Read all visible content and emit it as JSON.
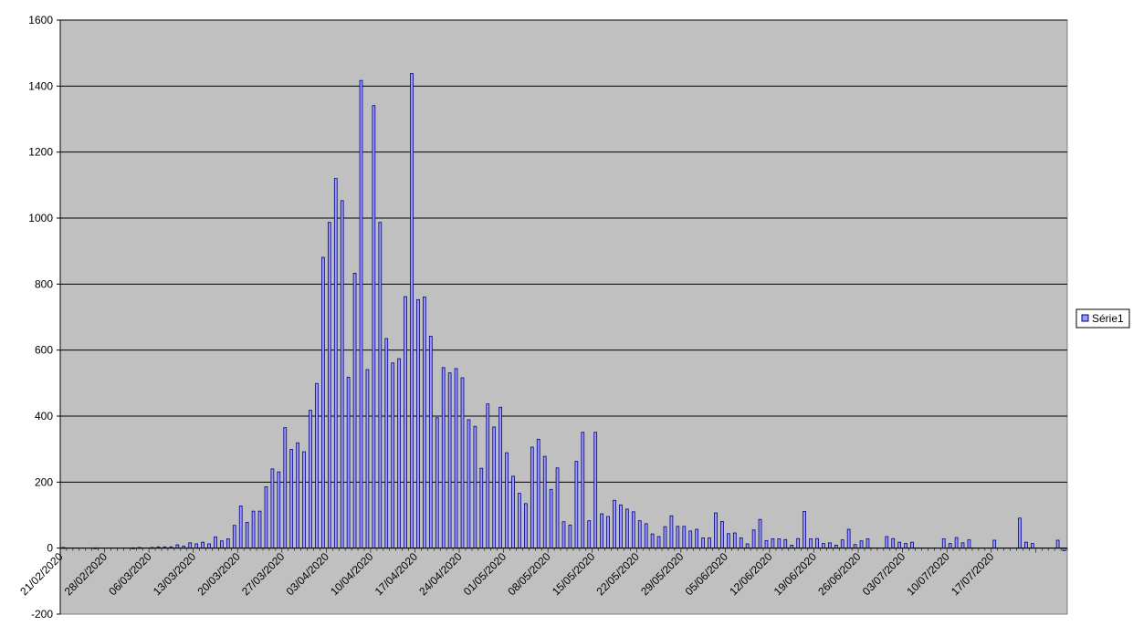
{
  "chart_data": {
    "type": "bar",
    "title": "",
    "xlabel": "",
    "ylabel": "",
    "ylim": [
      -200,
      1600
    ],
    "yticks": [
      -200,
      0,
      200,
      400,
      600,
      800,
      1000,
      1200,
      1400,
      1600
    ],
    "grid": "horizontal major gridlines",
    "legend": "right",
    "x_start_date": "21/02/2020",
    "x_tick_labels": [
      "21/02/2020",
      "28/02/2020",
      "06/03/2020",
      "13/03/2020",
      "20/03/2020",
      "27/03/2020",
      "03/04/2020",
      "10/04/2020",
      "17/04/2020",
      "24/04/2020",
      "01/05/2020",
      "08/05/2020",
      "15/05/2020",
      "22/05/2020",
      "29/05/2020",
      "05/06/2020",
      "12/06/2020",
      "19/06/2020",
      "26/06/2020",
      "03/07/2020",
      "10/07/2020",
      "17/07/2020"
    ],
    "colors": {
      "plot_bg": "#c0c0c0",
      "bar_fill": "#9999ff",
      "bar_stroke": "#000080",
      "grid": "#000000"
    },
    "series": [
      {
        "name": "Série1",
        "values": [
          2,
          0,
          0,
          0,
          0,
          1,
          0,
          0,
          0,
          0,
          0,
          1,
          2,
          0,
          2,
          4,
          4,
          4,
          10,
          6,
          16,
          13,
          18,
          13,
          34,
          22,
          28,
          69,
          128,
          78,
          112,
          112,
          186,
          240,
          231,
          365,
          299,
          319,
          292,
          418,
          499,
          881,
          987,
          1120,
          1053,
          518,
          833,
          1417,
          541,
          1341,
          987,
          635,
          561,
          574,
          762,
          1438,
          753,
          761,
          642,
          395,
          547,
          531,
          544,
          516,
          389,
          369,
          242,
          437,
          367,
          427,
          289,
          218,
          166,
          135,
          306,
          330,
          278,
          178,
          243,
          80,
          70,
          263,
          351,
          83,
          351,
          104,
          96,
          145,
          131,
          118,
          110,
          83,
          74,
          43,
          35,
          65,
          98,
          66,
          66,
          52,
          57,
          31,
          31,
          107,
          81,
          44,
          46,
          31,
          13,
          55,
          87,
          23,
          28,
          28,
          26,
          9,
          29,
          111,
          28,
          29,
          14,
          16,
          9,
          25,
          57,
          11,
          22,
          28,
          0,
          0,
          35,
          29,
          18,
          14,
          18,
          0,
          0,
          0,
          0,
          28,
          14,
          32,
          16,
          25,
          0,
          0,
          0,
          24,
          0,
          0,
          0,
          91,
          18,
          14,
          0,
          0,
          0,
          24,
          -8
        ]
      }
    ]
  }
}
